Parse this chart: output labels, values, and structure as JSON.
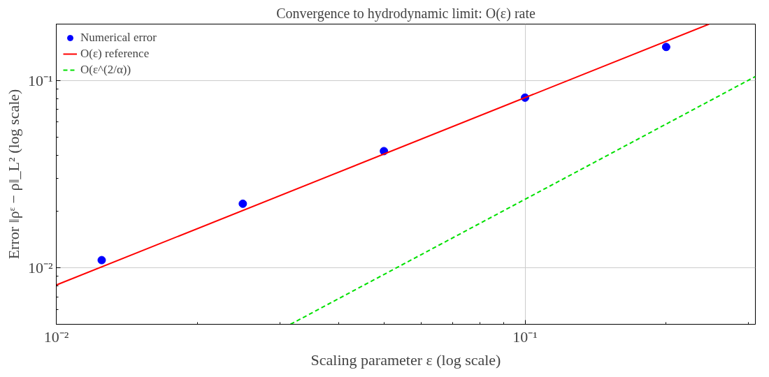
{
  "chart_data": {
    "type": "scatter",
    "title": "Convergence to hydrodynamic limit: O(ε) rate",
    "xlabel": "Scaling parameter ε (log scale)",
    "ylabel": "Error ‖ρᵋ − ρ‖_L² (log scale)",
    "log": "xy",
    "xlim": [
      0.01,
      0.31
    ],
    "ylim": [
      0.005,
      0.2
    ],
    "xticks": [
      {
        "value": 0.01,
        "label": "10⁻²"
      },
      {
        "value": 0.1,
        "label": "10⁻¹"
      }
    ],
    "yticks": [
      {
        "value": 0.01,
        "label": "10⁻²"
      },
      {
        "value": 0.1,
        "label": "10⁻¹"
      }
    ],
    "grid": true,
    "legend": "top left",
    "series": [
      {
        "name": "Numerical error",
        "marker": "circle",
        "color": "#0000ff",
        "x": [
          0.0125,
          0.025,
          0.05,
          0.1,
          0.2
        ],
        "values": [
          0.011,
          0.022,
          0.042,
          0.081,
          0.151
        ]
      },
      {
        "name": "O(ε) reference",
        "type": "line",
        "line_style": "solid",
        "color": "#ff0000",
        "x": [
          0.01,
          0.247
        ],
        "values": [
          0.0081,
          0.2
        ]
      },
      {
        "name": "O(ε^(2/α))",
        "type": "line",
        "line_style": "dashed",
        "color": "#00e000",
        "x": [
          0.0316,
          0.31
        ],
        "values": [
          0.005,
          0.105
        ]
      }
    ]
  }
}
